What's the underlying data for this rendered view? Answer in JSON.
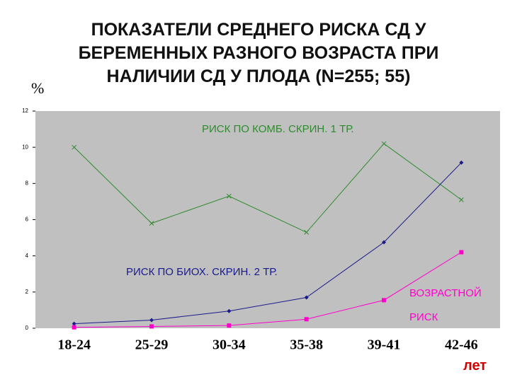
{
  "chart_data": {
    "type": "line",
    "title": "ПОКАЗАТЕЛИ СРЕДНЕГО РИСКА СД У БЕРЕМЕННЫХ РАЗНОГО ВОЗРАСТА ПРИ НАЛИЧИИ СД У ПЛОДА (N=255; 55)",
    "y_label": "%",
    "x_label": "лет",
    "categories": [
      "18-24",
      "25-29",
      "30-34",
      "35-38",
      "39-41",
      "42-46"
    ],
    "series": [
      {
        "name": "РИСК ПО КОМБ. СКРИН. 1 ТР.",
        "color": "#2e8b2e",
        "marker": "x",
        "values": [
          10,
          5.8,
          7.3,
          5.3,
          10.2,
          7.1
        ]
      },
      {
        "name": "РИСК ПО БИОХ. СКРИН. 2 ТР.",
        "color": "#1a1a8c",
        "marker": "diamond",
        "values": [
          0.25,
          0.45,
          0.95,
          1.7,
          4.75,
          9.15
        ]
      },
      {
        "name": "ВОЗРАСТНОЙ РИСК",
        "color": "#ff00cc",
        "marker": "square",
        "values": [
          0.05,
          0.1,
          0.15,
          0.5,
          1.55,
          4.2
        ]
      }
    ],
    "ylim": [
      0,
      12
    ],
    "yticks": [
      0,
      2,
      4,
      6,
      8,
      10,
      12
    ],
    "grid": false,
    "plot_background": "#c0c0c0"
  }
}
